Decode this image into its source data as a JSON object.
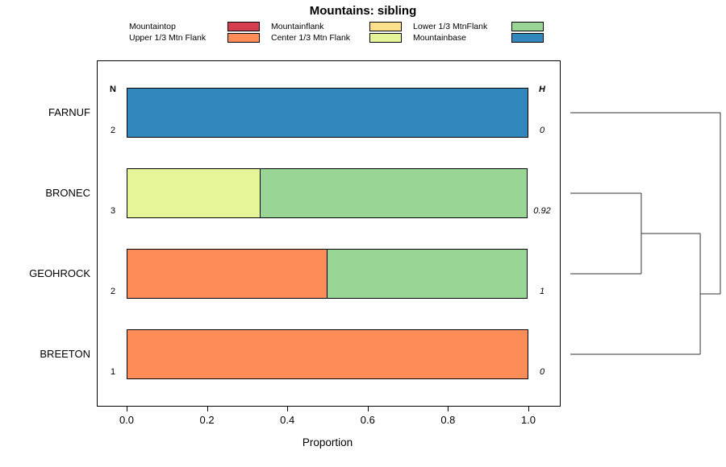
{
  "title": "Mountains: sibling",
  "legend": {
    "columns": [
      {
        "items": [
          {
            "label": "Mountaintop",
            "color": "#D53E4F"
          },
          {
            "label": "Upper 1/3 Mtn Flank",
            "color": "#FC8D59"
          }
        ]
      },
      {
        "items": [
          {
            "label": "Mountainflank",
            "color": "#FEE08B"
          },
          {
            "label": "Center 1/3 Mtn Flank",
            "color": "#E6F598"
          }
        ]
      },
      {
        "items": [
          {
            "label": "Lower 1/3 MtnFlank",
            "color": "#99D594"
          },
          {
            "label": "Mountainbase",
            "color": "#3288BD"
          }
        ]
      }
    ]
  },
  "chart_data": {
    "type": "bar",
    "orientation": "horizontal",
    "stacked": true,
    "title": "Mountains: sibling",
    "xlabel": "Proportion",
    "xlim": [
      0,
      1
    ],
    "xticks": [
      0,
      0.2,
      0.4,
      0.6,
      0.8,
      1.0
    ],
    "n_header": "N",
    "h_header": "H",
    "legend_entries": [
      "Mountaintop",
      "Upper 1/3 Mtn Flank",
      "Mountainflank",
      "Center 1/3 Mtn Flank",
      "Lower 1/3 MtnFlank",
      "Mountainbase"
    ],
    "rows": [
      {
        "label": "FARNUF",
        "n": "2",
        "h": "0",
        "segments": [
          {
            "category": "Mountainbase",
            "value": 1.0,
            "color": "#3288BD"
          }
        ]
      },
      {
        "label": "BRONEC",
        "n": "3",
        "h": "0.92",
        "segments": [
          {
            "category": "Center 1/3 Mtn Flank",
            "value": 0.333,
            "color": "#E6F598"
          },
          {
            "category": "Lower 1/3 MtnFlank",
            "value": 0.667,
            "color": "#99D594"
          }
        ]
      },
      {
        "label": "GEOHROCK",
        "n": "2",
        "h": "1",
        "segments": [
          {
            "category": "Upper 1/3 Mtn Flank",
            "value": 0.5,
            "color": "#FC8D59"
          },
          {
            "category": "Lower 1/3 MtnFlank",
            "value": 0.5,
            "color": "#99D594"
          }
        ]
      },
      {
        "label": "BREETON",
        "n": "1",
        "h": "0",
        "segments": [
          {
            "category": "Upper 1/3 Mtn Flank",
            "value": 1.0,
            "color": "#FC8D59"
          }
        ]
      }
    ]
  },
  "dendrogram": {
    "leaf_order": [
      "FARNUF",
      "BRONEC",
      "GEOHROCK",
      "BREETON"
    ],
    "merges": [
      {
        "a": "BRONEC",
        "b": "GEOHROCK",
        "height": 0.473
      },
      {
        "a": "merge0",
        "b": "BREETON",
        "height": 0.866
      },
      {
        "a": "merge1",
        "b": "FARNUF",
        "height": 1.0
      }
    ]
  }
}
